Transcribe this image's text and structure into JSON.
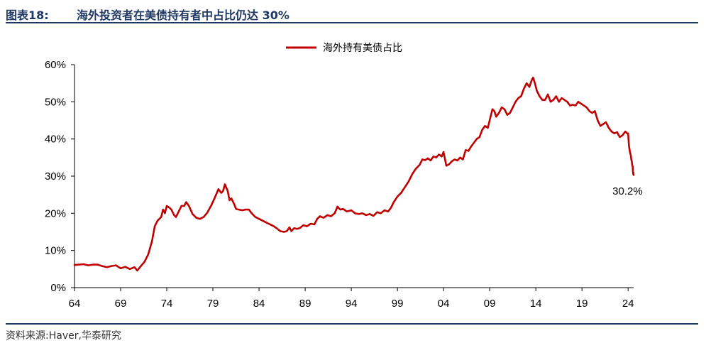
{
  "header": {
    "figure_no": "图表18:",
    "title": "海外投资者在美债持有者中占比仍达 30%"
  },
  "source": "资料来源:Haver,华泰研究",
  "colors": {
    "line": "#c00000",
    "title": "#1f3864",
    "axis": "#000000"
  },
  "chart_data": {
    "type": "line",
    "title": "",
    "xlabel": "",
    "ylabel": "",
    "xlim": [
      1964,
      2024.6
    ],
    "ylim": [
      0,
      60
    ],
    "x_ticks": [
      {
        "value": 1964,
        "label": "64"
      },
      {
        "value": 1969,
        "label": "69"
      },
      {
        "value": 1974,
        "label": "74"
      },
      {
        "value": 1979,
        "label": "79"
      },
      {
        "value": 1984,
        "label": "84"
      },
      {
        "value": 1989,
        "label": "89"
      },
      {
        "value": 1994,
        "label": "94"
      },
      {
        "value": 1999,
        "label": "99"
      },
      {
        "value": 2004,
        "label": "04"
      },
      {
        "value": 2009,
        "label": "09"
      },
      {
        "value": 2014,
        "label": "14"
      },
      {
        "value": 2019,
        "label": "19"
      },
      {
        "value": 2024,
        "label": "24"
      }
    ],
    "y_ticks": [
      {
        "value": 0,
        "label": "0%"
      },
      {
        "value": 10,
        "label": "10%"
      },
      {
        "value": 20,
        "label": "20%"
      },
      {
        "value": 30,
        "label": "30%"
      },
      {
        "value": 40,
        "label": "40%"
      },
      {
        "value": 50,
        "label": "50%"
      },
      {
        "value": 60,
        "label": "60%"
      }
    ],
    "grid": false,
    "legend_position": "top-center",
    "annotation": {
      "x": 2024.5,
      "y": 30.2,
      "text": "30.2%"
    },
    "series": [
      {
        "name": "海外持有美债占比",
        "color": "#c00000",
        "points": [
          [
            1964.0,
            6.1
          ],
          [
            1964.5,
            6.2
          ],
          [
            1965.0,
            6.3
          ],
          [
            1965.5,
            6.0
          ],
          [
            1966.0,
            6.2
          ],
          [
            1966.5,
            6.2
          ],
          [
            1967.0,
            5.8
          ],
          [
            1967.5,
            5.5
          ],
          [
            1968.0,
            5.8
          ],
          [
            1968.5,
            6.0
          ],
          [
            1969.0,
            5.2
          ],
          [
            1969.5,
            5.6
          ],
          [
            1970.0,
            5.0
          ],
          [
            1970.5,
            5.5
          ],
          [
            1970.8,
            4.6
          ],
          [
            1971.2,
            5.8
          ],
          [
            1971.6,
            7.0
          ],
          [
            1972.0,
            9.0
          ],
          [
            1972.4,
            12.5
          ],
          [
            1972.7,
            16.5
          ],
          [
            1973.0,
            18.0
          ],
          [
            1973.4,
            19.0
          ],
          [
            1973.6,
            21.0
          ],
          [
            1973.8,
            20.0
          ],
          [
            1974.0,
            22.0
          ],
          [
            1974.3,
            21.5
          ],
          [
            1974.5,
            21.0
          ],
          [
            1974.8,
            19.5
          ],
          [
            1975.0,
            19.0
          ],
          [
            1975.3,
            20.5
          ],
          [
            1975.6,
            22.0
          ],
          [
            1975.9,
            22.0
          ],
          [
            1976.1,
            23.0
          ],
          [
            1976.4,
            22.0
          ],
          [
            1976.8,
            19.8
          ],
          [
            1977.2,
            18.8
          ],
          [
            1977.6,
            18.5
          ],
          [
            1978.0,
            19.0
          ],
          [
            1978.4,
            20.2
          ],
          [
            1978.8,
            22.0
          ],
          [
            1979.2,
            24.2
          ],
          [
            1979.6,
            26.5
          ],
          [
            1979.9,
            25.5
          ],
          [
            1980.1,
            26.0
          ],
          [
            1980.3,
            27.8
          ],
          [
            1980.6,
            26.0
          ],
          [
            1980.8,
            23.5
          ],
          [
            1981.0,
            24.0
          ],
          [
            1981.3,
            22.5
          ],
          [
            1981.5,
            21.2
          ],
          [
            1981.8,
            21.0
          ],
          [
            1982.2,
            20.8
          ],
          [
            1982.5,
            21.0
          ],
          [
            1982.9,
            21.0
          ],
          [
            1983.2,
            20.0
          ],
          [
            1983.6,
            19.0
          ],
          [
            1984.0,
            18.5
          ],
          [
            1984.4,
            18.0
          ],
          [
            1984.8,
            17.5
          ],
          [
            1985.2,
            17.0
          ],
          [
            1985.6,
            16.5
          ],
          [
            1986.0,
            15.8
          ],
          [
            1986.3,
            15.2
          ],
          [
            1986.7,
            15.0
          ],
          [
            1987.0,
            15.2
          ],
          [
            1987.3,
            16.2
          ],
          [
            1987.5,
            15.2
          ],
          [
            1987.8,
            16.0
          ],
          [
            1988.1,
            15.8
          ],
          [
            1988.4,
            16.0
          ],
          [
            1988.8,
            16.8
          ],
          [
            1989.2,
            16.5
          ],
          [
            1989.6,
            17.2
          ],
          [
            1990.0,
            17.0
          ],
          [
            1990.3,
            18.5
          ],
          [
            1990.6,
            19.2
          ],
          [
            1991.0,
            18.8
          ],
          [
            1991.4,
            19.5
          ],
          [
            1991.8,
            19.2
          ],
          [
            1992.2,
            20.0
          ],
          [
            1992.5,
            21.8
          ],
          [
            1992.8,
            21.0
          ],
          [
            1993.1,
            21.2
          ],
          [
            1993.5,
            20.5
          ],
          [
            1994.0,
            20.8
          ],
          [
            1994.4,
            20.0
          ],
          [
            1994.8,
            19.8
          ],
          [
            1995.2,
            20.0
          ],
          [
            1995.6,
            19.5
          ],
          [
            1996.0,
            19.8
          ],
          [
            1996.4,
            19.3
          ],
          [
            1996.8,
            20.3
          ],
          [
            1997.2,
            20.0
          ],
          [
            1997.6,
            20.8
          ],
          [
            1998.0,
            20.5
          ],
          [
            1998.3,
            21.5
          ],
          [
            1998.6,
            23.0
          ],
          [
            1999.0,
            24.5
          ],
          [
            1999.4,
            25.5
          ],
          [
            1999.8,
            27.0
          ],
          [
            2000.2,
            28.5
          ],
          [
            2000.6,
            30.5
          ],
          [
            2001.0,
            32.0
          ],
          [
            2001.4,
            33.0
          ],
          [
            2001.7,
            34.5
          ],
          [
            2002.0,
            34.3
          ],
          [
            2002.3,
            34.8
          ],
          [
            2002.6,
            34.2
          ],
          [
            2002.9,
            35.3
          ],
          [
            2003.2,
            35.0
          ],
          [
            2003.5,
            35.8
          ],
          [
            2003.8,
            35.3
          ],
          [
            2004.0,
            36.5
          ],
          [
            2004.3,
            32.8
          ],
          [
            2004.6,
            33.2
          ],
          [
            2004.9,
            34.0
          ],
          [
            2005.2,
            34.5
          ],
          [
            2005.5,
            34.2
          ],
          [
            2005.8,
            35.0
          ],
          [
            2006.1,
            34.5
          ],
          [
            2006.4,
            37.0
          ],
          [
            2006.7,
            36.8
          ],
          [
            2007.0,
            38.0
          ],
          [
            2007.3,
            39.0
          ],
          [
            2007.6,
            40.0
          ],
          [
            2007.9,
            40.5
          ],
          [
            2008.2,
            42.5
          ],
          [
            2008.5,
            43.5
          ],
          [
            2008.8,
            43.0
          ],
          [
            2009.0,
            45.0
          ],
          [
            2009.3,
            48.0
          ],
          [
            2009.5,
            47.5
          ],
          [
            2009.7,
            46.0
          ],
          [
            2010.0,
            47.0
          ],
          [
            2010.3,
            48.5
          ],
          [
            2010.6,
            48.0
          ],
          [
            2010.9,
            46.5
          ],
          [
            2011.2,
            47.0
          ],
          [
            2011.5,
            48.5
          ],
          [
            2011.8,
            50.0
          ],
          [
            2012.1,
            51.0
          ],
          [
            2012.4,
            51.5
          ],
          [
            2012.7,
            53.5
          ],
          [
            2013.0,
            55.0
          ],
          [
            2013.3,
            54.0
          ],
          [
            2013.5,
            55.5
          ],
          [
            2013.7,
            56.5
          ],
          [
            2013.9,
            55.0
          ],
          [
            2014.1,
            53.0
          ],
          [
            2014.4,
            51.5
          ],
          [
            2014.7,
            50.5
          ],
          [
            2015.0,
            50.5
          ],
          [
            2015.3,
            52.0
          ],
          [
            2015.6,
            50.0
          ],
          [
            2015.9,
            50.5
          ],
          [
            2016.2,
            51.5
          ],
          [
            2016.5,
            50.0
          ],
          [
            2016.8,
            51.0
          ],
          [
            2017.1,
            50.5
          ],
          [
            2017.4,
            50.0
          ],
          [
            2017.7,
            49.0
          ],
          [
            2018.0,
            49.2
          ],
          [
            2018.3,
            49.0
          ],
          [
            2018.6,
            50.0
          ],
          [
            2018.9,
            49.5
          ],
          [
            2019.2,
            49.0
          ],
          [
            2019.5,
            48.5
          ],
          [
            2019.8,
            47.5
          ],
          [
            2020.1,
            47.0
          ],
          [
            2020.4,
            47.5
          ],
          [
            2020.7,
            45.0
          ],
          [
            2021.0,
            43.5
          ],
          [
            2021.3,
            44.0
          ],
          [
            2021.6,
            44.5
          ],
          [
            2021.9,
            43.0
          ],
          [
            2022.2,
            42.0
          ],
          [
            2022.5,
            41.5
          ],
          [
            2022.8,
            41.8
          ],
          [
            2023.1,
            40.5
          ],
          [
            2023.4,
            41.0
          ],
          [
            2023.7,
            42.0
          ],
          [
            2023.9,
            41.5
          ],
          [
            2024.0,
            41.5
          ],
          [
            2024.1,
            38.0
          ],
          [
            2024.2,
            36.5
          ],
          [
            2024.3,
            35.5
          ],
          [
            2024.35,
            34.5
          ],
          [
            2024.4,
            34.0
          ],
          [
            2024.45,
            33.0
          ],
          [
            2024.5,
            32.5
          ],
          [
            2024.52,
            31.5
          ],
          [
            2024.54,
            31.0
          ],
          [
            2024.56,
            30.5
          ],
          [
            2024.58,
            31.0
          ],
          [
            2024.6,
            30.3
          ]
        ]
      }
    ]
  }
}
